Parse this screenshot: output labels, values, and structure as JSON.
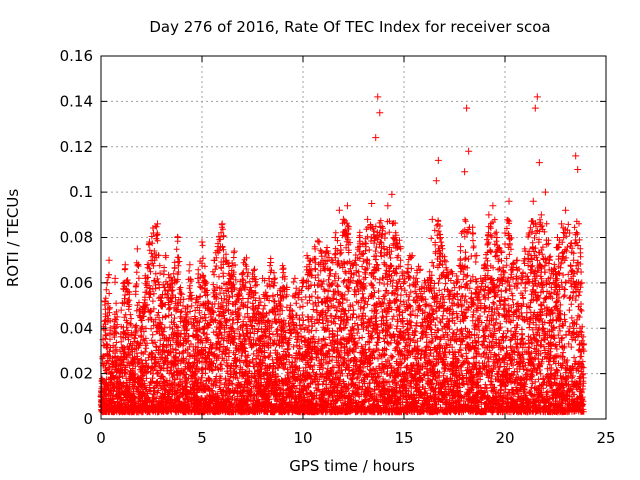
{
  "chart_data": {
    "type": "scatter",
    "title": "Day 276 of 2016, Rate Of TEC Index for receiver scoa",
    "xlabel": "GPS time / hours",
    "ylabel": "ROTI / TECUs",
    "xlim": [
      0,
      25
    ],
    "ylim": [
      0,
      0.16
    ],
    "xticks": [
      0,
      5,
      10,
      15,
      20,
      25
    ],
    "xtick_labels": [
      "0",
      "5",
      "10",
      "15",
      "20",
      "25"
    ],
    "yticks": [
      0,
      0.02,
      0.04,
      0.06,
      0.08,
      0.1,
      0.12,
      0.14,
      0.16
    ],
    "ytick_labels": [
      "0",
      "0.02",
      "0.04",
      "0.06",
      "0.08",
      "0.1",
      "0.12",
      "0.14",
      "0.16"
    ],
    "grid": true,
    "marker": "+",
    "series": [
      {
        "name": "ROTI",
        "color": "#ff0000",
        "points": [
          [
            0.0,
            0.01
          ],
          [
            0.1,
            0.035
          ],
          [
            0.2,
            0.052
          ],
          [
            0.3,
            0.06
          ],
          [
            0.4,
            0.07
          ],
          [
            0.5,
            0.018
          ],
          [
            0.6,
            0.03
          ],
          [
            0.7,
            0.062
          ],
          [
            0.8,
            0.045
          ],
          [
            0.9,
            0.012
          ],
          [
            1.0,
            0.048
          ],
          [
            1.2,
            0.068
          ],
          [
            1.4,
            0.055
          ],
          [
            1.6,
            0.025
          ],
          [
            1.8,
            0.075
          ],
          [
            2.0,
            0.04
          ],
          [
            2.2,
            0.062
          ],
          [
            2.4,
            0.078
          ],
          [
            2.6,
            0.082
          ],
          [
            2.8,
            0.086
          ],
          [
            3.0,
            0.05
          ],
          [
            3.2,
            0.072
          ],
          [
            3.4,
            0.058
          ],
          [
            3.6,
            0.064
          ],
          [
            3.8,
            0.08
          ],
          [
            4.0,
            0.055
          ],
          [
            4.2,
            0.045
          ],
          [
            4.4,
            0.068
          ],
          [
            4.6,
            0.04
          ],
          [
            4.8,
            0.062
          ],
          [
            5.0,
            0.078
          ],
          [
            5.2,
            0.06
          ],
          [
            5.4,
            0.048
          ],
          [
            5.6,
            0.07
          ],
          [
            5.8,
            0.076
          ],
          [
            6.0,
            0.086
          ],
          [
            6.2,
            0.07
          ],
          [
            6.4,
            0.062
          ],
          [
            6.6,
            0.074
          ],
          [
            6.8,
            0.055
          ],
          [
            7.0,
            0.064
          ],
          [
            7.2,
            0.071
          ],
          [
            7.4,
            0.058
          ],
          [
            7.6,
            0.066
          ],
          [
            7.8,
            0.05
          ],
          [
            8.0,
            0.062
          ],
          [
            8.2,
            0.054
          ],
          [
            8.4,
            0.069
          ],
          [
            8.6,
            0.06
          ],
          [
            8.8,
            0.052
          ],
          [
            9.0,
            0.066
          ],
          [
            9.2,
            0.058
          ],
          [
            9.4,
            0.048
          ],
          [
            9.6,
            0.062
          ],
          [
            9.8,
            0.055
          ],
          [
            10.0,
            0.06
          ],
          [
            10.2,
            0.072
          ],
          [
            10.4,
            0.066
          ],
          [
            10.6,
            0.075
          ],
          [
            10.8,
            0.078
          ],
          [
            11.0,
            0.068
          ],
          [
            11.2,
            0.074
          ],
          [
            11.4,
            0.07
          ],
          [
            11.6,
            0.08
          ],
          [
            11.8,
            0.092
          ],
          [
            12.0,
            0.088
          ],
          [
            12.2,
            0.094
          ],
          [
            12.4,
            0.064
          ],
          [
            12.6,
            0.07
          ],
          [
            12.8,
            0.08
          ],
          [
            13.0,
            0.073
          ],
          [
            13.2,
            0.088
          ],
          [
            13.4,
            0.095
          ],
          [
            13.6,
            0.124
          ],
          [
            13.7,
            0.142
          ],
          [
            13.8,
            0.135
          ],
          [
            14.0,
            0.076
          ],
          [
            14.2,
            0.094
          ],
          [
            14.4,
            0.099
          ],
          [
            14.6,
            0.081
          ],
          [
            14.8,
            0.076
          ],
          [
            15.0,
            0.064
          ],
          [
            15.2,
            0.068
          ],
          [
            15.4,
            0.072
          ],
          [
            15.6,
            0.062
          ],
          [
            15.8,
            0.066
          ],
          [
            16.0,
            0.058
          ],
          [
            16.2,
            0.06
          ],
          [
            16.4,
            0.088
          ],
          [
            16.6,
            0.105
          ],
          [
            16.7,
            0.114
          ],
          [
            16.8,
            0.08
          ],
          [
            17.0,
            0.07
          ],
          [
            17.2,
            0.062
          ],
          [
            17.4,
            0.064
          ],
          [
            17.6,
            0.06
          ],
          [
            17.8,
            0.076
          ],
          [
            18.0,
            0.109
          ],
          [
            18.1,
            0.137
          ],
          [
            18.2,
            0.118
          ],
          [
            18.4,
            0.082
          ],
          [
            18.6,
            0.072
          ],
          [
            18.8,
            0.062
          ],
          [
            19.0,
            0.068
          ],
          [
            19.2,
            0.09
          ],
          [
            19.4,
            0.094
          ],
          [
            19.6,
            0.08
          ],
          [
            19.8,
            0.074
          ],
          [
            20.0,
            0.082
          ],
          [
            20.2,
            0.096
          ],
          [
            20.4,
            0.066
          ],
          [
            20.6,
            0.07
          ],
          [
            20.8,
            0.06
          ],
          [
            21.0,
            0.074
          ],
          [
            21.2,
            0.082
          ],
          [
            21.4,
            0.096
          ],
          [
            21.5,
            0.137
          ],
          [
            21.6,
            0.142
          ],
          [
            21.7,
            0.113
          ],
          [
            21.8,
            0.09
          ],
          [
            22.0,
            0.1
          ],
          [
            22.2,
            0.07
          ],
          [
            22.4,
            0.064
          ],
          [
            22.6,
            0.08
          ],
          [
            22.8,
            0.086
          ],
          [
            23.0,
            0.092
          ],
          [
            23.2,
            0.082
          ],
          [
            23.4,
            0.07
          ],
          [
            23.5,
            0.116
          ],
          [
            23.6,
            0.11
          ],
          [
            23.8,
            0.06
          ],
          [
            23.9,
            0.03
          ]
        ]
      }
    ]
  }
}
